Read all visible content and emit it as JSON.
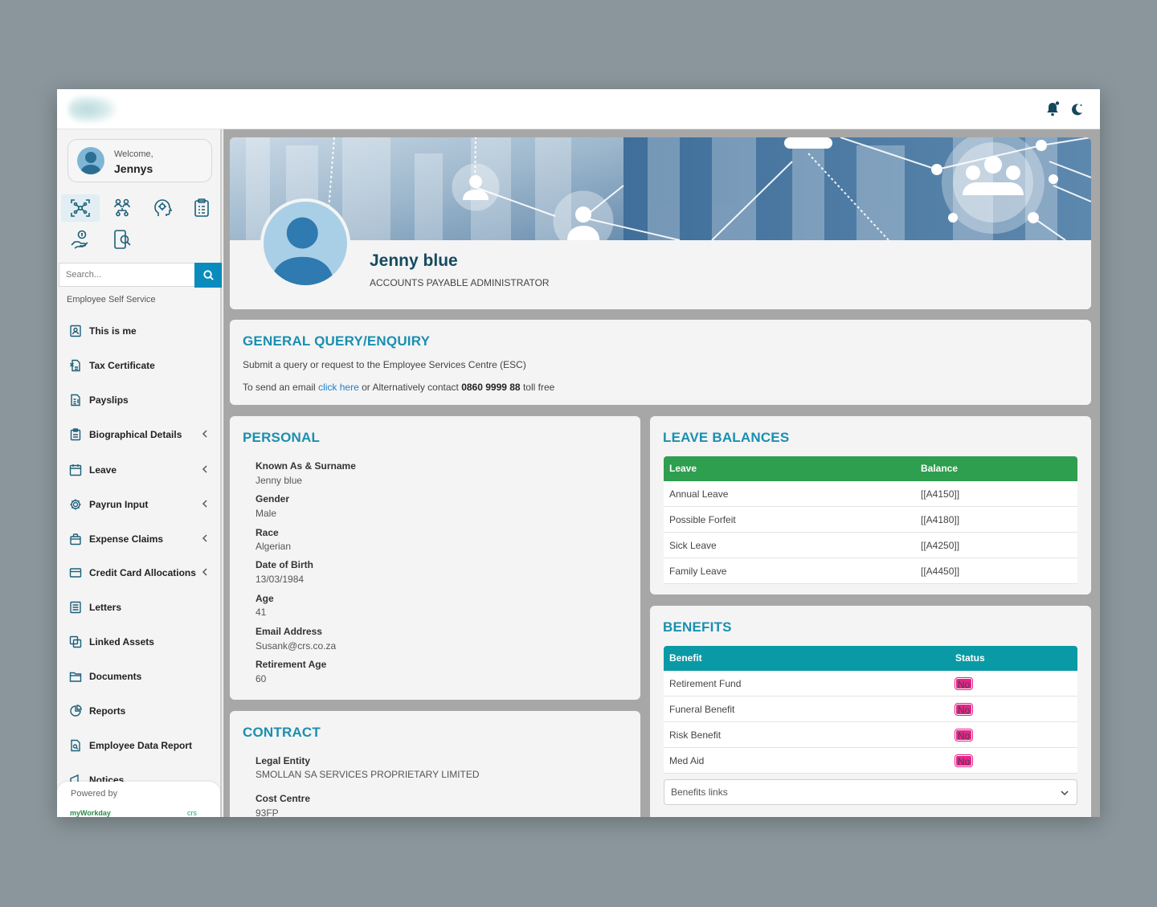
{
  "header": {
    "icons": [
      "bell-icon",
      "moon-icon"
    ]
  },
  "sidebar": {
    "welcome_text": "Welcome,",
    "user_name": "Jennys",
    "quick_icons": [
      "network-focus-icon",
      "org-chart-icon",
      "head-gear-icon",
      "clipboard-icon",
      "money-hand-icon",
      "phone-search-icon"
    ],
    "search_placeholder": "Search...",
    "section_label": "Employee Self Service",
    "items": [
      {
        "label": "This is me",
        "icon": "id-card-icon",
        "expandable": false
      },
      {
        "label": "Tax Certificate",
        "icon": "tax-document-icon",
        "expandable": false
      },
      {
        "label": "Payslips",
        "icon": "payslip-icon",
        "expandable": false
      },
      {
        "label": "Biographical Details",
        "icon": "clipboard-icon",
        "expandable": true
      },
      {
        "label": "Leave",
        "icon": "calendar-icon",
        "expandable": true
      },
      {
        "label": "Payrun Input",
        "icon": "gear-icon",
        "expandable": true
      },
      {
        "label": "Expense Claims",
        "icon": "bag-icon",
        "expandable": true
      },
      {
        "label": "Credit Card Allocations",
        "icon": "credit-card-icon",
        "expandable": true
      },
      {
        "label": "Letters",
        "icon": "letter-icon",
        "expandable": false
      },
      {
        "label": "Linked Assets",
        "icon": "linked-assets-icon",
        "expandable": false
      },
      {
        "label": "Documents",
        "icon": "folder-icon",
        "expandable": false
      },
      {
        "label": "Reports",
        "icon": "chart-pie-icon",
        "expandable": false
      },
      {
        "label": "Employee Data Report",
        "icon": "report-icon",
        "expandable": false
      },
      {
        "label": "Notices",
        "icon": "notice-icon",
        "expandable": false
      }
    ],
    "powered_by": "Powered by",
    "powered_logo": "myWorkday",
    "powered_logo2": "crs"
  },
  "profile": {
    "name": "Jenny blue",
    "job_title": "ACCOUNTS PAYABLE ADMINISTRATOR"
  },
  "query": {
    "title": "GENERAL QUERY/ENQUIRY",
    "line1": "Submit a query or request to the Employee Services Centre (ESC)",
    "line2_prefix": "To send an email",
    "line2_link": "click here",
    "line2_middle": "or Alternatively contact",
    "line2_number": "0860 9999 88",
    "line2_suffix": "toll free"
  },
  "personal": {
    "title": "PERSONAL",
    "fields": [
      {
        "label": "Known As & Surname",
        "value": "Jenny blue"
      },
      {
        "label": "Gender",
        "value": "Male"
      },
      {
        "label": "Race",
        "value": "Algerian"
      },
      {
        "label": "Date of Birth",
        "value": "13/03/1984"
      },
      {
        "label": "Age",
        "value": "41"
      },
      {
        "label": "Email Address",
        "value": "Susank@crs.co.za"
      },
      {
        "label": "Retirement Age",
        "value": "60"
      }
    ]
  },
  "contract": {
    "title": "CONTRACT",
    "fields": [
      {
        "label": "Legal Entity",
        "value": "SMOLLAN SA SERVICES PROPRIETARY LIMITED"
      },
      {
        "label": "Cost Centre",
        "value": "93FP"
      }
    ]
  },
  "leave": {
    "title": "LEAVE BALANCES",
    "columns": [
      "Leave",
      "Balance"
    ],
    "header_color": "#2e9e4f",
    "rows": [
      {
        "leave": "Annual Leave",
        "balance": "[[A4150]]"
      },
      {
        "leave": "Possible Forfeit",
        "balance": "[[A4180]]"
      },
      {
        "leave": "Sick Leave",
        "balance": "[[A4250]]"
      },
      {
        "leave": "Family Leave",
        "balance": "[[A4450]]"
      }
    ]
  },
  "benefits": {
    "title": "BENEFITS",
    "columns": [
      "Benefit",
      "Status"
    ],
    "header_color": "#0a9aa5",
    "rows": [
      {
        "benefit": "Retirement Fund",
        "status": "No"
      },
      {
        "benefit": "Funeral Benefit",
        "status": "No"
      },
      {
        "benefit": "Risk Benefit",
        "status": "No"
      },
      {
        "benefit": "Med Aid",
        "status": "No"
      }
    ],
    "links_select": "Benefits links",
    "badge_color": "#e8238a"
  }
}
